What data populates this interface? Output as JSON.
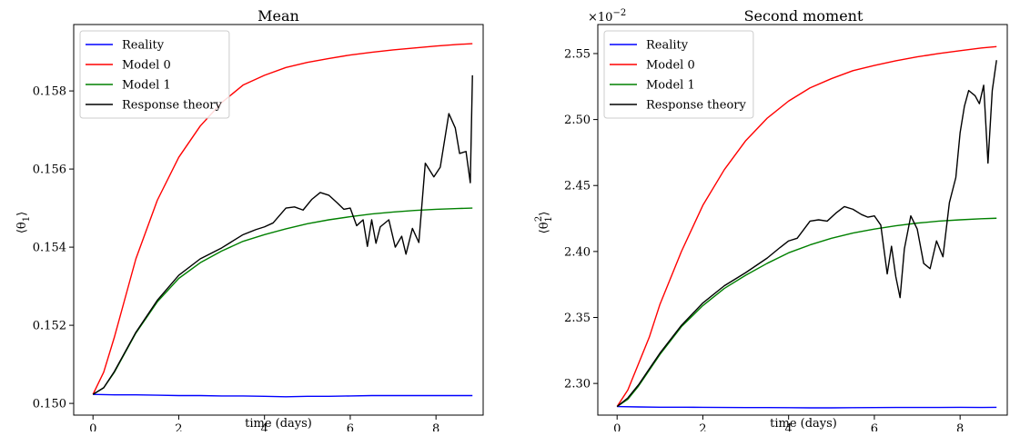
{
  "chart_data": [
    {
      "type": "line",
      "title": "Mean",
      "xlabel": "time (days)",
      "ylabel": "⟨θ₁⟩",
      "ylabel_main": "⟨θ",
      "ylabel_sub": "1",
      "ylabel_close": "⟩",
      "exponent": "",
      "xlim": [
        -0.45,
        9.1
      ],
      "ylim": [
        0.1497,
        0.1597
      ],
      "xticks": [
        0,
        2,
        4,
        6,
        8
      ],
      "xtick_labels": [
        "0",
        "2",
        "4",
        "6",
        "8"
      ],
      "yticks": [
        0.15,
        0.152,
        0.154,
        0.156,
        0.158
      ],
      "ytick_labels": [
        "0.150",
        "0.152",
        "0.154",
        "0.156",
        "0.158"
      ],
      "grid": false,
      "legend_position": "top-left",
      "series": [
        {
          "name": "Reality",
          "color": "#0000ff",
          "x": [
            0,
            0.5,
            1,
            1.5,
            2,
            2.5,
            3,
            3.5,
            4,
            4.5,
            5,
            5.5,
            6,
            6.5,
            7,
            7.5,
            8,
            8.5,
            8.85
          ],
          "y": [
            0.15023,
            0.15022,
            0.15022,
            0.15021,
            0.1502,
            0.1502,
            0.15019,
            0.15019,
            0.15018,
            0.15017,
            0.15018,
            0.15018,
            0.15019,
            0.1502,
            0.1502,
            0.1502,
            0.1502,
            0.1502,
            0.1502
          ]
        },
        {
          "name": "Model 0",
          "color": "#ff0000",
          "x": [
            0,
            0.25,
            0.5,
            0.75,
            1,
            1.5,
            2,
            2.5,
            3,
            3.5,
            4,
            4.5,
            5,
            5.5,
            6,
            6.5,
            7,
            7.5,
            8,
            8.5,
            8.85
          ],
          "y": [
            0.15023,
            0.1508,
            0.1517,
            0.1527,
            0.1537,
            0.1552,
            0.1563,
            0.1571,
            0.1577,
            0.15815,
            0.1584,
            0.1586,
            0.15873,
            0.15883,
            0.15892,
            0.15899,
            0.15905,
            0.1591,
            0.15915,
            0.15919,
            0.15921
          ]
        },
        {
          "name": "Model 1",
          "color": "#008000",
          "x": [
            0,
            0.25,
            0.5,
            0.75,
            1,
            1.5,
            2,
            2.5,
            3,
            3.5,
            4,
            4.5,
            5,
            5.5,
            6,
            6.5,
            7,
            7.5,
            8,
            8.5,
            8.85
          ],
          "y": [
            0.15023,
            0.1504,
            0.1508,
            0.1513,
            0.1518,
            0.1526,
            0.1532,
            0.1536,
            0.1539,
            0.15415,
            0.15432,
            0.15447,
            0.1546,
            0.1547,
            0.15478,
            0.15485,
            0.1549,
            0.15494,
            0.15497,
            0.15499,
            0.155
          ]
        },
        {
          "name": "Response theory",
          "color": "#000000",
          "x": [
            0,
            0.25,
            0.5,
            0.75,
            1,
            1.5,
            2,
            2.5,
            3,
            3.5,
            3.8,
            4.0,
            4.2,
            4.5,
            4.7,
            4.9,
            5.1,
            5.3,
            5.5,
            5.7,
            5.85,
            6.0,
            6.15,
            6.3,
            6.4,
            6.5,
            6.6,
            6.7,
            6.9,
            7.05,
            7.2,
            7.3,
            7.45,
            7.6,
            7.75,
            7.95,
            8.1,
            8.3,
            8.45,
            8.55,
            8.7,
            8.8,
            8.85
          ],
          "y": [
            0.15023,
            0.1504,
            0.15082,
            0.15132,
            0.15182,
            0.15264,
            0.15328,
            0.1537,
            0.15398,
            0.15432,
            0.15445,
            0.15452,
            0.15462,
            0.155,
            0.15503,
            0.15495,
            0.15522,
            0.1554,
            0.15533,
            0.15513,
            0.15497,
            0.155,
            0.15455,
            0.1547,
            0.15402,
            0.1547,
            0.1541,
            0.15452,
            0.1547,
            0.154,
            0.15428,
            0.15382,
            0.15448,
            0.15412,
            0.15615,
            0.1558,
            0.15605,
            0.15742,
            0.15705,
            0.1564,
            0.15645,
            0.15565,
            0.1584
          ]
        }
      ]
    },
    {
      "type": "line",
      "title": "Second moment",
      "xlabel": "time (days)",
      "ylabel": "⟨θ₁²⟩",
      "ylabel_main": "⟨θ",
      "ylabel_sub": "1",
      "ylabel_sup": "2",
      "ylabel_close": "⟩",
      "exponent": "×10",
      "exponent_power": "−2",
      "xlim": [
        -0.45,
        9.1
      ],
      "ylim": [
        2.276,
        2.572
      ],
      "xticks": [
        0,
        2,
        4,
        6,
        8
      ],
      "xtick_labels": [
        "0",
        "2",
        "4",
        "6",
        "8"
      ],
      "yticks": [
        2.3,
        2.35,
        2.4,
        2.45,
        2.5,
        2.55
      ],
      "ytick_labels": [
        "2.30",
        "2.35",
        "2.40",
        "2.45",
        "2.50",
        "2.55"
      ],
      "grid": false,
      "legend_position": "top-left",
      "series": [
        {
          "name": "Reality",
          "color": "#0000ff",
          "x": [
            0,
            0.5,
            1,
            1.5,
            2,
            2.5,
            3,
            3.5,
            4,
            4.5,
            5,
            5.5,
            6,
            6.5,
            7,
            7.5,
            8,
            8.5,
            8.85
          ],
          "y": [
            2.2825,
            2.2822,
            2.282,
            2.282,
            2.2819,
            2.2818,
            2.2817,
            2.2817,
            2.2816,
            2.2815,
            2.2815,
            2.2816,
            2.2817,
            2.2818,
            2.2818,
            2.2818,
            2.2819,
            2.2818,
            2.2819
          ]
        },
        {
          "name": "Model 0",
          "color": "#ff0000",
          "x": [
            0,
            0.25,
            0.5,
            0.75,
            1,
            1.5,
            2,
            2.5,
            3,
            3.5,
            4,
            4.5,
            5,
            5.5,
            6,
            6.5,
            7,
            7.5,
            8,
            8.5,
            8.85
          ],
          "y": [
            2.2825,
            2.295,
            2.315,
            2.335,
            2.36,
            2.4,
            2.435,
            2.462,
            2.484,
            2.501,
            2.514,
            2.524,
            2.531,
            2.537,
            2.541,
            2.5445,
            2.5475,
            2.55,
            2.5522,
            2.5542,
            2.5553
          ]
        },
        {
          "name": "Model 1",
          "color": "#008000",
          "x": [
            0,
            0.25,
            0.5,
            0.75,
            1,
            1.5,
            2,
            2.5,
            3,
            3.5,
            4,
            4.5,
            5,
            5.5,
            6,
            6.5,
            7,
            7.5,
            8,
            8.5,
            8.85
          ],
          "y": [
            2.2825,
            2.288,
            2.298,
            2.31,
            2.322,
            2.343,
            2.359,
            2.372,
            2.382,
            2.391,
            2.399,
            2.405,
            2.41,
            2.414,
            2.417,
            2.4195,
            2.4215,
            2.423,
            2.424,
            2.4248,
            2.4252
          ]
        },
        {
          "name": "Response theory",
          "color": "#000000",
          "x": [
            0,
            0.25,
            0.5,
            0.75,
            1,
            1.5,
            2,
            2.5,
            3,
            3.5,
            3.8,
            4.0,
            4.2,
            4.5,
            4.7,
            4.9,
            5.1,
            5.3,
            5.5,
            5.7,
            5.85,
            6.0,
            6.15,
            6.3,
            6.4,
            6.5,
            6.6,
            6.7,
            6.85,
            7.0,
            7.15,
            7.3,
            7.45,
            7.6,
            7.75,
            7.9,
            8.0,
            8.1,
            8.2,
            8.35,
            8.45,
            8.55,
            8.65,
            8.75,
            8.85
          ],
          "y": [
            2.2825,
            2.289,
            2.299,
            2.311,
            2.323,
            2.344,
            2.361,
            2.374,
            2.384,
            2.395,
            2.403,
            2.408,
            2.41,
            2.423,
            2.424,
            2.423,
            2.429,
            2.434,
            2.432,
            2.428,
            2.426,
            2.427,
            2.42,
            2.383,
            2.404,
            2.381,
            2.365,
            2.402,
            2.427,
            2.417,
            2.391,
            2.387,
            2.408,
            2.396,
            2.437,
            2.456,
            2.49,
            2.51,
            2.522,
            2.518,
            2.512,
            2.526,
            2.467,
            2.522,
            2.545
          ]
        }
      ]
    }
  ]
}
